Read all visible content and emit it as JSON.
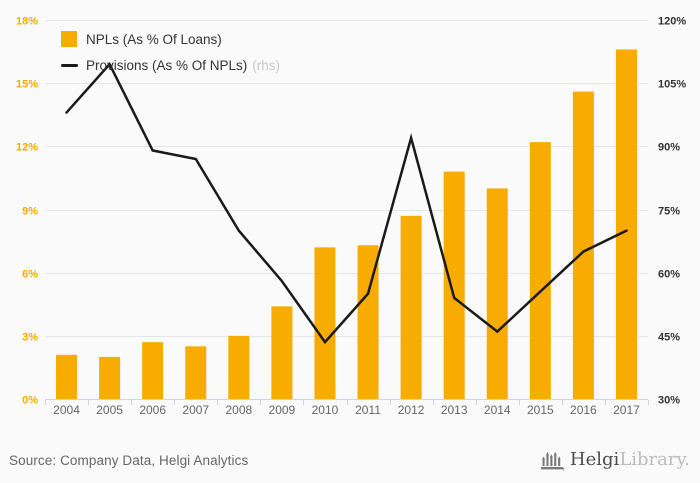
{
  "chart_data": {
    "type": "bar",
    "categories": [
      "2004",
      "2005",
      "2006",
      "2007",
      "2008",
      "2009",
      "2010",
      "2011",
      "2012",
      "2013",
      "2014",
      "2015",
      "2016",
      "2017"
    ],
    "series": [
      {
        "name": "NPLs (As % Of Loans)",
        "type": "bar",
        "y_axis": "left",
        "color": "#F8AB00",
        "values": [
          2.1,
          2.0,
          2.7,
          2.5,
          3.0,
          4.4,
          7.2,
          7.3,
          8.7,
          10.8,
          10.0,
          12.2,
          14.6,
          16.6
        ]
      },
      {
        "name": "Provisions (As % Of NPLs)",
        "type": "line",
        "y_axis": "right",
        "color": "#1A1A1A",
        "legend_suffix": "(rhs)",
        "values": [
          98,
          109.5,
          89,
          87,
          70,
          58,
          43.5,
          55,
          92,
          54,
          46,
          55.5,
          65,
          70
        ]
      }
    ],
    "left_axis": {
      "min": 0,
      "max": 18,
      "tick_interval": 3,
      "labels": [
        "0%",
        "3%",
        "6%",
        "9%",
        "12%",
        "15%",
        "18%"
      ],
      "label_color": "#F8AB00"
    },
    "right_axis": {
      "min": 30,
      "max": 120,
      "tick_interval": 15,
      "labels": [
        "30%",
        "45%",
        "60%",
        "75%",
        "90%",
        "105%",
        "120%"
      ],
      "label_color": "#333333"
    },
    "grid": true,
    "legend_position": "top-left",
    "title": ""
  },
  "legend": {
    "items": [
      {
        "label": "NPLs (As % Of Loans)"
      },
      {
        "label": "Provisions (As % Of NPLs)",
        "suffix": "(rhs)"
      }
    ]
  },
  "footer": {
    "source": "Source: Company Data, Helgi Analytics",
    "logo": {
      "brand_dark": "Helgi",
      "brand_light": "Library."
    }
  },
  "colors": {
    "bar": "#F8AB00",
    "line": "#1A1A1A",
    "grid": "#E6E6E6",
    "axis": "#CCD6EB",
    "x_label": "#666666",
    "background": "#FAFAFA"
  }
}
